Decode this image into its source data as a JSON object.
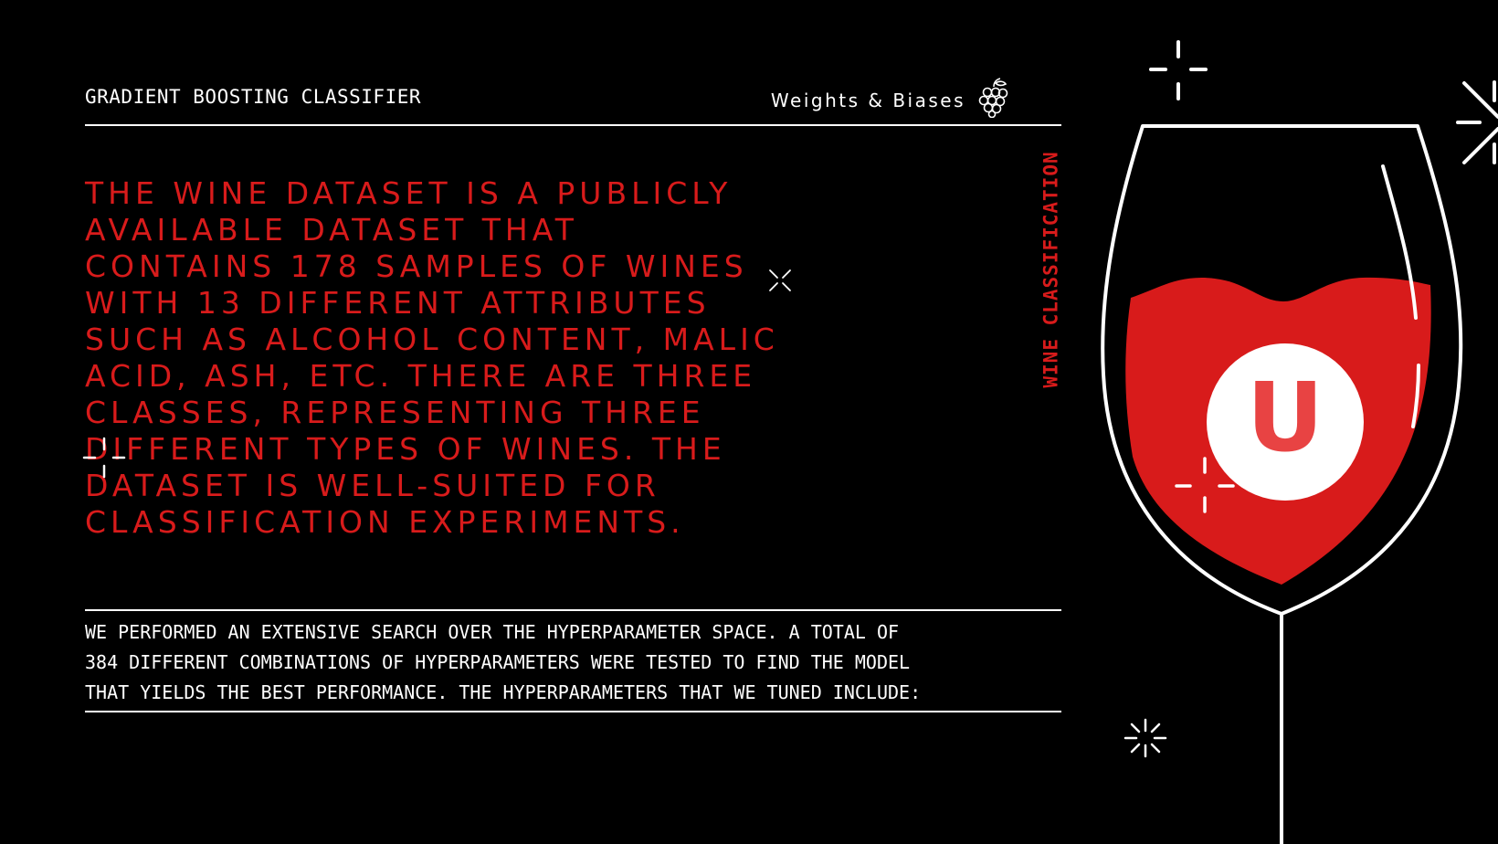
{
  "header": {
    "title": "GRADIENT BOOSTING CLASSIFIER",
    "brand": "Weights & Biases"
  },
  "side_label": "WINE CLASSIFICATION",
  "headline_lines": [
    "THE WINE DATASET IS A PUBLICLY",
    "AVAILABLE DATASET THAT",
    "CONTAINS 178 SAMPLES OF WINES",
    "WITH 13 DIFFERENT ATTRIBUTES",
    "SUCH AS ALCOHOL CONTENT, MALIC",
    "ACID, ASH, ETC. THERE ARE THREE",
    "CLASSES, REPRESENTING THREE",
    "DIFFERENT TYPES OF WINES. THE",
    "DATASET IS WELL-SUITED FOR",
    "CLASSIFICATION EXPERIMENTS."
  ],
  "body_lines": [
    "WE PERFORMED AN EXTENSIVE SEARCH OVER THE HYPERPARAMETER SPACE. A TOTAL OF",
    "384 DIFFERENT COMBINATIONS OF HYPERPARAMETERS WERE TESTED TO FIND THE MODEL",
    "THAT YIELDS THE BEST PERFORMANCE. THE HYPERPARAMETERS THAT WE TUNED INCLUDE:"
  ],
  "glass_badge_letter": "U",
  "colors": {
    "background": "#000000",
    "accent": "#d81b1b",
    "badge_letter": "#e84343",
    "text": "#ffffff"
  },
  "icons": {
    "brand": "grapes-icon",
    "sparkles": "sparkle-icon"
  }
}
